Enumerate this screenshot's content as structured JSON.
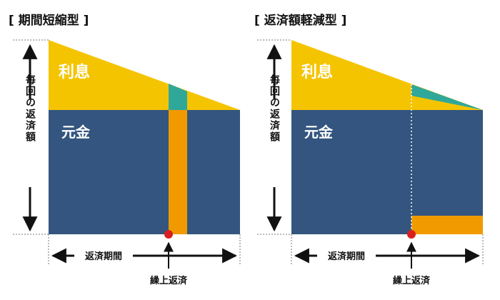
{
  "panels": [
    {
      "title": "[ 期間短縮型 ]",
      "interest_label": "利息",
      "principal_label": "元金",
      "side_label": "毎回の返済額",
      "period_label": "返済期間",
      "prepay_label": "繰上返済"
    },
    {
      "title": "[ 返済額軽減型 ]",
      "interest_label": "利息",
      "principal_label": "元金",
      "side_label": "毎回の返済額",
      "period_label": "返済期間",
      "prepay_label": "繰上返済"
    }
  ],
  "colors": {
    "interest": "#f5c400",
    "principal": "#33557f",
    "prepaid_principal": "#f09a00",
    "prepaid_interest": "#2fa89a",
    "marker": "#d8201e",
    "arrow": "#111111",
    "guide": "#888888"
  }
}
